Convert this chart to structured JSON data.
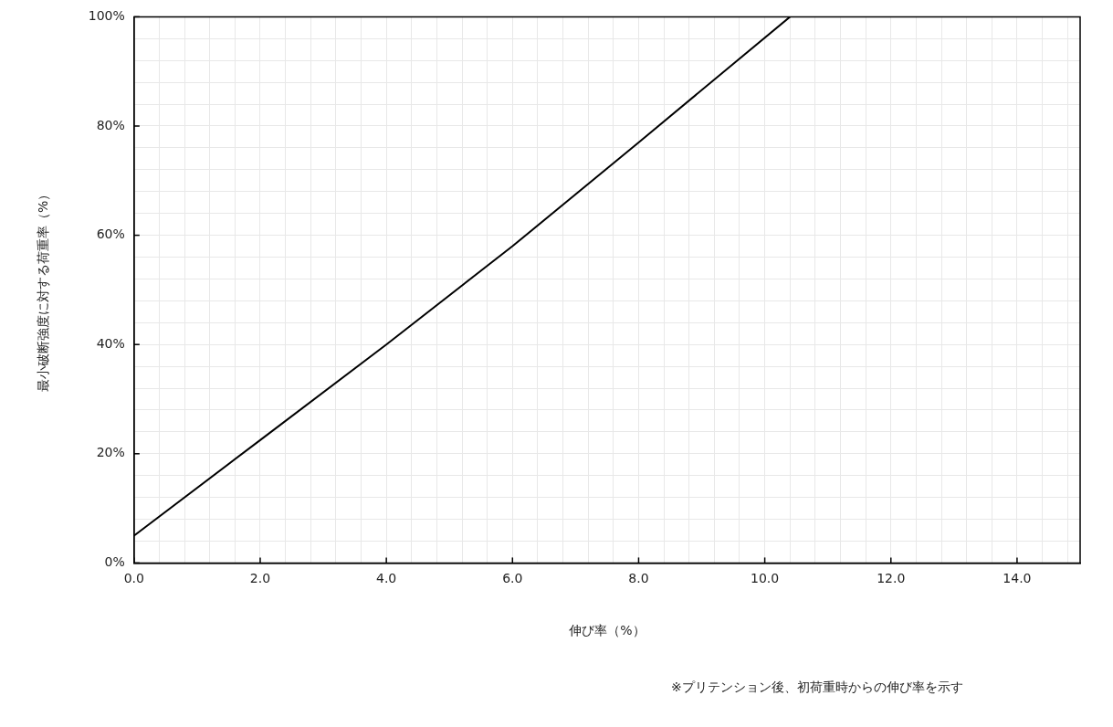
{
  "chart_data": {
    "type": "line",
    "xlabel": "伸び率（%）",
    "ylabel": "最小破断強度に対する荷重率（%）",
    "annotations": [
      "※プリテンション後、初荷重時からの伸び率を示す"
    ],
    "x": [
      0,
      2,
      4,
      6,
      8,
      10.4
    ],
    "series": [
      {
        "color": "#000000",
        "values": [
          5,
          22.5,
          40,
          58,
          77,
          100
        ]
      }
    ],
    "xlim": [
      0,
      15
    ],
    "xticks": [
      {
        "value": 0,
        "label": "0.0"
      },
      {
        "value": 0.4,
        "label": null
      },
      {
        "value": 0.8,
        "label": null
      },
      {
        "value": 1.2,
        "label": null
      },
      {
        "value": 1.6,
        "label": null
      },
      {
        "value": 2,
        "label": "2.0"
      },
      {
        "value": 2.4,
        "label": null
      },
      {
        "value": 2.8,
        "label": null
      },
      {
        "value": 3.2,
        "label": null
      },
      {
        "value": 3.6,
        "label": null
      },
      {
        "value": 4,
        "label": "4.0"
      },
      {
        "value": 4.4,
        "label": null
      },
      {
        "value": 4.8,
        "label": null
      },
      {
        "value": 5.2,
        "label": null
      },
      {
        "value": 5.6,
        "label": null
      },
      {
        "value": 6,
        "label": "6.0"
      },
      {
        "value": 6.4,
        "label": null
      },
      {
        "value": 6.8,
        "label": null
      },
      {
        "value": 7.2,
        "label": null
      },
      {
        "value": 7.6,
        "label": null
      },
      {
        "value": 8,
        "label": "8.0"
      },
      {
        "value": 8.4,
        "label": null
      },
      {
        "value": 8.8,
        "label": null
      },
      {
        "value": 9.2,
        "label": null
      },
      {
        "value": 9.6,
        "label": null
      },
      {
        "value": 10,
        "label": "10.0"
      },
      {
        "value": 10.4,
        "label": null
      },
      {
        "value": 10.8,
        "label": null
      },
      {
        "value": 11.2,
        "label": null
      },
      {
        "value": 11.6,
        "label": null
      },
      {
        "value": 12,
        "label": "12.0"
      },
      {
        "value": 12.4,
        "label": null
      },
      {
        "value": 12.8,
        "label": null
      },
      {
        "value": 13.2,
        "label": null
      },
      {
        "value": 13.6,
        "label": null
      },
      {
        "value": 14,
        "label": "14.0"
      },
      {
        "value": 14.4,
        "label": null
      },
      {
        "value": 14.8,
        "label": null
      }
    ],
    "ylim": [
      0,
      100
    ],
    "yticks": [
      {
        "value": 0,
        "label": "0%"
      },
      {
        "value": 4,
        "label": null
      },
      {
        "value": 8,
        "label": null
      },
      {
        "value": 12,
        "label": null
      },
      {
        "value": 16,
        "label": null
      },
      {
        "value": 20,
        "label": "20%"
      },
      {
        "value": 24,
        "label": null
      },
      {
        "value": 28,
        "label": null
      },
      {
        "value": 32,
        "label": null
      },
      {
        "value": 36,
        "label": null
      },
      {
        "value": 40,
        "label": "40%"
      },
      {
        "value": 44,
        "label": null
      },
      {
        "value": 48,
        "label": null
      },
      {
        "value": 52,
        "label": null
      },
      {
        "value": 56,
        "label": null
      },
      {
        "value": 60,
        "label": "60%"
      },
      {
        "value": 64,
        "label": null
      },
      {
        "value": 68,
        "label": null
      },
      {
        "value": 72,
        "label": null
      },
      {
        "value": 76,
        "label": null
      },
      {
        "value": 80,
        "label": "80%"
      },
      {
        "value": 84,
        "label": null
      },
      {
        "value": 88,
        "label": null
      },
      {
        "value": 92,
        "label": null
      },
      {
        "value": 96,
        "label": null
      },
      {
        "value": 100,
        "label": "100%"
      }
    ],
    "grid": true,
    "marker": "none",
    "line_style": "solid",
    "legend": false
  }
}
